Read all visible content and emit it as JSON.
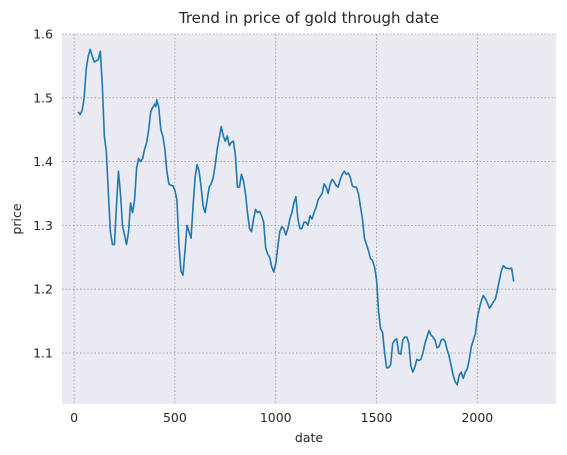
{
  "chart_data": {
    "type": "line",
    "title": "Trend in price of gold through date",
    "xlabel": "date",
    "ylabel": "price",
    "xlim": [
      -60,
      2390
    ],
    "ylim": [
      1.02,
      1.6
    ],
    "xticks": [
      0,
      500,
      1000,
      1500,
      2000
    ],
    "yticks": [
      1.1,
      1.2,
      1.3,
      1.4,
      1.5,
      1.6
    ],
    "xtick_labels": [
      "0",
      "500",
      "1000",
      "1500",
      "2000"
    ],
    "ytick_labels": [
      "1.1",
      "1.2",
      "1.3",
      "1.4",
      "1.5",
      "1.6"
    ],
    "grid": true,
    "series": [
      {
        "color": "#1f77b4",
        "points": [
          [
            20,
            1.478
          ],
          [
            30,
            1.474
          ],
          [
            40,
            1.48
          ],
          [
            50,
            1.5
          ],
          [
            60,
            1.545
          ],
          [
            70,
            1.565
          ],
          [
            80,
            1.576
          ],
          [
            90,
            1.565
          ],
          [
            100,
            1.556
          ],
          [
            110,
            1.558
          ],
          [
            120,
            1.56
          ],
          [
            130,
            1.573
          ],
          [
            140,
            1.52
          ],
          [
            150,
            1.44
          ],
          [
            160,
            1.415
          ],
          [
            170,
            1.35
          ],
          [
            180,
            1.29
          ],
          [
            190,
            1.27
          ],
          [
            200,
            1.27
          ],
          [
            210,
            1.33
          ],
          [
            220,
            1.385
          ],
          [
            230,
            1.35
          ],
          [
            240,
            1.3
          ],
          [
            250,
            1.285
          ],
          [
            260,
            1.27
          ],
          [
            270,
            1.29
          ],
          [
            280,
            1.335
          ],
          [
            290,
            1.32
          ],
          [
            300,
            1.34
          ],
          [
            310,
            1.39
          ],
          [
            320,
            1.405
          ],
          [
            330,
            1.4
          ],
          [
            340,
            1.405
          ],
          [
            350,
            1.42
          ],
          [
            360,
            1.43
          ],
          [
            370,
            1.45
          ],
          [
            380,
            1.478
          ],
          [
            390,
            1.485
          ],
          [
            400,
            1.49
          ],
          [
            405,
            1.486
          ],
          [
            410,
            1.497
          ],
          [
            420,
            1.485
          ],
          [
            430,
            1.45
          ],
          [
            440,
            1.44
          ],
          [
            450,
            1.42
          ],
          [
            460,
            1.385
          ],
          [
            470,
            1.365
          ],
          [
            480,
            1.363
          ],
          [
            490,
            1.362
          ],
          [
            500,
            1.355
          ],
          [
            510,
            1.34
          ],
          [
            520,
            1.27
          ],
          [
            530,
            1.228
          ],
          [
            540,
            1.222
          ],
          [
            550,
            1.26
          ],
          [
            560,
            1.3
          ],
          [
            570,
            1.29
          ],
          [
            580,
            1.28
          ],
          [
            590,
            1.33
          ],
          [
            600,
            1.375
          ],
          [
            610,
            1.395
          ],
          [
            620,
            1.385
          ],
          [
            630,
            1.36
          ],
          [
            640,
            1.33
          ],
          [
            650,
            1.32
          ],
          [
            660,
            1.34
          ],
          [
            670,
            1.36
          ],
          [
            680,
            1.365
          ],
          [
            690,
            1.375
          ],
          [
            700,
            1.395
          ],
          [
            710,
            1.42
          ],
          [
            720,
            1.437
          ],
          [
            730,
            1.455
          ],
          [
            740,
            1.44
          ],
          [
            750,
            1.432
          ],
          [
            760,
            1.44
          ],
          [
            770,
            1.425
          ],
          [
            780,
            1.43
          ],
          [
            790,
            1.432
          ],
          [
            800,
            1.41
          ],
          [
            810,
            1.36
          ],
          [
            820,
            1.36
          ],
          [
            830,
            1.38
          ],
          [
            840,
            1.37
          ],
          [
            850,
            1.35
          ],
          [
            860,
            1.32
          ],
          [
            870,
            1.295
          ],
          [
            880,
            1.29
          ],
          [
            890,
            1.31
          ],
          [
            900,
            1.325
          ],
          [
            910,
            1.32
          ],
          [
            920,
            1.322
          ],
          [
            930,
            1.315
          ],
          [
            940,
            1.305
          ],
          [
            950,
            1.265
          ],
          [
            960,
            1.255
          ],
          [
            970,
            1.25
          ],
          [
            980,
            1.235
          ],
          [
            990,
            1.227
          ],
          [
            1000,
            1.24
          ],
          [
            1010,
            1.265
          ],
          [
            1020,
            1.29
          ],
          [
            1030,
            1.298
          ],
          [
            1040,
            1.295
          ],
          [
            1050,
            1.285
          ],
          [
            1060,
            1.295
          ],
          [
            1070,
            1.31
          ],
          [
            1080,
            1.32
          ],
          [
            1090,
            1.335
          ],
          [
            1100,
            1.345
          ],
          [
            1110,
            1.31
          ],
          [
            1120,
            1.295
          ],
          [
            1130,
            1.295
          ],
          [
            1140,
            1.305
          ],
          [
            1150,
            1.305
          ],
          [
            1160,
            1.3
          ],
          [
            1170,
            1.315
          ],
          [
            1180,
            1.31
          ],
          [
            1190,
            1.32
          ],
          [
            1200,
            1.328
          ],
          [
            1210,
            1.34
          ],
          [
            1220,
            1.345
          ],
          [
            1230,
            1.35
          ],
          [
            1240,
            1.365
          ],
          [
            1250,
            1.36
          ],
          [
            1260,
            1.35
          ],
          [
            1270,
            1.365
          ],
          [
            1280,
            1.372
          ],
          [
            1290,
            1.368
          ],
          [
            1300,
            1.362
          ],
          [
            1310,
            1.36
          ],
          [
            1320,
            1.372
          ],
          [
            1330,
            1.38
          ],
          [
            1340,
            1.385
          ],
          [
            1350,
            1.38
          ],
          [
            1360,
            1.382
          ],
          [
            1370,
            1.375
          ],
          [
            1380,
            1.362
          ],
          [
            1390,
            1.36
          ],
          [
            1400,
            1.36
          ],
          [
            1410,
            1.35
          ],
          [
            1420,
            1.33
          ],
          [
            1430,
            1.31
          ],
          [
            1440,
            1.28
          ],
          [
            1450,
            1.27
          ],
          [
            1460,
            1.26
          ],
          [
            1470,
            1.248
          ],
          [
            1480,
            1.245
          ],
          [
            1490,
            1.235
          ],
          [
            1500,
            1.215
          ],
          [
            1510,
            1.165
          ],
          [
            1520,
            1.138
          ],
          [
            1530,
            1.132
          ],
          [
            1540,
            1.1
          ],
          [
            1550,
            1.077
          ],
          [
            1560,
            1.077
          ],
          [
            1570,
            1.082
          ],
          [
            1580,
            1.115
          ],
          [
            1590,
            1.12
          ],
          [
            1600,
            1.122
          ],
          [
            1610,
            1.1
          ],
          [
            1620,
            1.098
          ],
          [
            1630,
            1.12
          ],
          [
            1640,
            1.125
          ],
          [
            1650,
            1.125
          ],
          [
            1660,
            1.115
          ],
          [
            1670,
            1.08
          ],
          [
            1680,
            1.07
          ],
          [
            1690,
            1.078
          ],
          [
            1700,
            1.09
          ],
          [
            1710,
            1.088
          ],
          [
            1720,
            1.09
          ],
          [
            1730,
            1.1
          ],
          [
            1740,
            1.115
          ],
          [
            1750,
            1.125
          ],
          [
            1760,
            1.135
          ],
          [
            1770,
            1.128
          ],
          [
            1780,
            1.125
          ],
          [
            1790,
            1.12
          ],
          [
            1800,
            1.108
          ],
          [
            1810,
            1.11
          ],
          [
            1820,
            1.12
          ],
          [
            1830,
            1.122
          ],
          [
            1840,
            1.118
          ],
          [
            1850,
            1.105
          ],
          [
            1860,
            1.095
          ],
          [
            1870,
            1.08
          ],
          [
            1880,
            1.065
          ],
          [
            1890,
            1.055
          ],
          [
            1900,
            1.05
          ],
          [
            1910,
            1.065
          ],
          [
            1920,
            1.07
          ],
          [
            1930,
            1.06
          ],
          [
            1940,
            1.07
          ],
          [
            1950,
            1.075
          ],
          [
            1960,
            1.09
          ],
          [
            1970,
            1.11
          ],
          [
            1980,
            1.12
          ],
          [
            1990,
            1.13
          ],
          [
            2000,
            1.155
          ],
          [
            2010,
            1.17
          ],
          [
            2020,
            1.182
          ],
          [
            2030,
            1.19
          ],
          [
            2040,
            1.185
          ],
          [
            2050,
            1.178
          ],
          [
            2060,
            1.17
          ],
          [
            2070,
            1.175
          ],
          [
            2080,
            1.18
          ],
          [
            2090,
            1.185
          ],
          [
            2100,
            1.2
          ],
          [
            2110,
            1.215
          ],
          [
            2120,
            1.23
          ],
          [
            2130,
            1.237
          ],
          [
            2140,
            1.233
          ],
          [
            2150,
            1.233
          ],
          [
            2160,
            1.232
          ],
          [
            2170,
            1.233
          ],
          [
            2180,
            1.212
          ]
        ]
      }
    ]
  }
}
